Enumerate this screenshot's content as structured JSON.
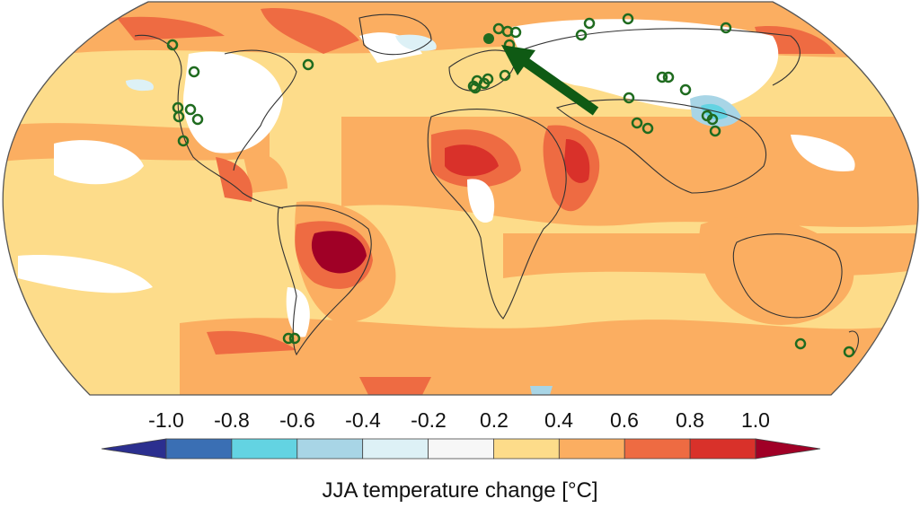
{
  "colorbar": {
    "title": "JJA temperature change [°C]",
    "ticks": [
      "-1.0",
      "-0.8",
      "-0.6",
      "-0.4",
      "-0.2",
      "0.2",
      "0.4",
      "0.6",
      "0.8",
      "1.0"
    ],
    "bins": [
      {
        "range": "< -1.0",
        "color": "#2b2f8f"
      },
      {
        "range": "-1.0 to -0.8",
        "color": "#3a6fb4"
      },
      {
        "range": "-0.8 to -0.6",
        "color": "#63d3e2"
      },
      {
        "range": "-0.6 to -0.4",
        "color": "#a8d5e6"
      },
      {
        "range": "-0.4 to -0.2",
        "color": "#ddf1f6"
      },
      {
        "range": "-0.2 to 0.2",
        "color": "#f7f7f7"
      },
      {
        "range": "0.2 to 0.4",
        "color": "#fddc8a"
      },
      {
        "range": "0.4 to 0.6",
        "color": "#fbae61"
      },
      {
        "range": "0.6 to 0.8",
        "color": "#ee6b42"
      },
      {
        "range": "0.8 to 1.0",
        "color": "#d9312a"
      },
      {
        "range": "> 1.0",
        "color": "#a00026"
      }
    ]
  },
  "markers": {
    "site_color": "#1f6b1f",
    "highlighted_site": "filled marker",
    "arrow_color": "#0f5a14"
  },
  "colors": {
    "coastline": "#333333",
    "map_border": "#555555",
    "no_data": "#ffffff"
  }
}
